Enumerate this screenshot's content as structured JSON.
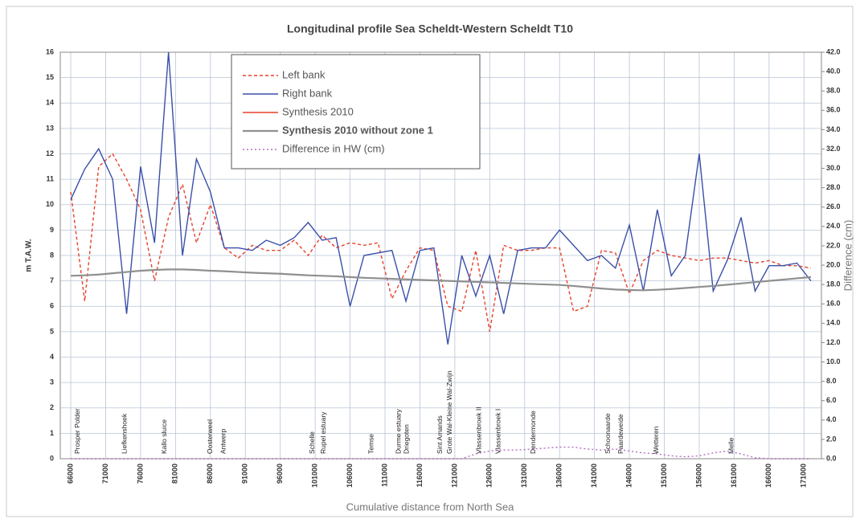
{
  "chart_data": {
    "type": "line",
    "title": "Longitudinal profile Sea Scheldt-Western Scheldt T10",
    "xlabel": "Cumulative distance from North Sea",
    "ylabel": "m T.A.W.",
    "y2label": "Difference (cm)",
    "xlim": [
      64500,
      173500
    ],
    "ylim": [
      0,
      16
    ],
    "y2lim": [
      0,
      42
    ],
    "xticks": [
      66000,
      71000,
      76000,
      81000,
      86000,
      91000,
      96000,
      101000,
      106000,
      111000,
      116000,
      121000,
      126000,
      131000,
      136000,
      141000,
      146000,
      151000,
      156000,
      161000,
      166000,
      171000
    ],
    "yticks": [
      0,
      1,
      2,
      3,
      4,
      5,
      6,
      7,
      8,
      9,
      10,
      11,
      12,
      13,
      14,
      15,
      16
    ],
    "y2ticks": [
      {
        "value": 0,
        "label": "0.0"
      },
      {
        "value": 2,
        "label": "2.0"
      },
      {
        "value": 4,
        "label": "4.0"
      },
      {
        "value": 6,
        "label": "6.0"
      },
      {
        "value": 8,
        "label": "8.0"
      },
      {
        "value": 10,
        "label": "10.0"
      },
      {
        "value": 12,
        "label": "12.0"
      },
      {
        "value": 14,
        "label": "14.0"
      },
      {
        "value": 16,
        "label": "16.0"
      },
      {
        "value": 18,
        "label": "18.0"
      },
      {
        "value": 20,
        "label": "20.0"
      },
      {
        "value": 22,
        "label": "22.0"
      },
      {
        "value": 24,
        "label": "24.0"
      },
      {
        "value": 26,
        "label": "26.0"
      },
      {
        "value": 28,
        "label": "28.0"
      },
      {
        "value": 30,
        "label": "30.0"
      },
      {
        "value": 32,
        "label": "32.0"
      },
      {
        "value": 34,
        "label": "34.0"
      },
      {
        "value": 36,
        "label": "36.0"
      },
      {
        "value": 38,
        "label": "38.0"
      },
      {
        "value": 40,
        "label": "40.0"
      },
      {
        "value": 42,
        "label": "42.0"
      }
    ],
    "grid": true,
    "legend": "upper-left",
    "x": [
      66000,
      68000,
      70000,
      72000,
      74000,
      76000,
      78000,
      80000,
      82000,
      84000,
      86000,
      88000,
      90000,
      92000,
      94000,
      96000,
      98000,
      100000,
      102000,
      104000,
      106000,
      108000,
      110000,
      112000,
      114000,
      116000,
      118000,
      120000,
      122000,
      124000,
      126000,
      128000,
      130000,
      132000,
      134000,
      136000,
      138000,
      140000,
      142000,
      144000,
      146000,
      148000,
      150000,
      152000,
      154000,
      156000,
      158000,
      160000,
      162000,
      164000,
      166000,
      168000,
      170000,
      172000
    ],
    "series": [
      {
        "name": "Left bank",
        "color": "#e8412a",
        "dash": "4,3",
        "values": [
          10.5,
          6.2,
          11.5,
          12.0,
          11.0,
          9.8,
          7.0,
          9.5,
          10.8,
          8.5,
          10.0,
          8.3,
          7.9,
          8.4,
          8.2,
          8.2,
          8.6,
          8.0,
          8.8,
          8.3,
          8.5,
          8.4,
          8.5,
          6.3,
          7.4,
          8.3,
          8.2,
          6.0,
          5.8,
          8.2,
          5.0,
          8.4,
          8.2,
          8.2,
          8.3,
          8.3,
          5.8,
          6.0,
          8.2,
          8.1,
          6.5,
          7.8,
          8.2,
          8.0,
          7.9,
          7.8,
          7.9,
          7.9,
          7.8,
          7.7,
          7.8,
          7.6,
          7.6,
          7.5
        ]
      },
      {
        "name": "Right bank",
        "color": "#3a4fa8",
        "values": [
          10.2,
          11.4,
          12.2,
          11.0,
          5.7,
          11.5,
          8.5,
          16.0,
          8.0,
          11.8,
          10.5,
          8.3,
          8.3,
          8.2,
          8.6,
          8.4,
          8.7,
          9.3,
          8.6,
          8.7,
          6.0,
          8.0,
          8.1,
          8.2,
          6.2,
          8.2,
          8.3,
          4.5,
          8.0,
          6.4,
          8.0,
          5.7,
          8.2,
          8.3,
          8.3,
          9.0,
          8.4,
          7.8,
          8.0,
          7.5,
          9.2,
          6.6,
          9.8,
          7.2,
          8.0,
          12.0,
          6.6,
          7.8,
          9.5,
          6.6,
          7.6,
          7.6,
          7.7,
          7.0
        ]
      },
      {
        "name": "Synthesis 2010",
        "color": "#e8412a",
        "values": [
          7.2,
          7.22,
          7.25,
          7.3,
          7.35,
          7.4,
          7.43,
          7.45,
          7.45,
          7.43,
          7.4,
          7.38,
          7.35,
          7.32,
          7.3,
          7.28,
          7.25,
          7.22,
          7.2,
          7.18,
          7.15,
          7.12,
          7.1,
          7.08,
          7.06,
          7.04,
          7.02,
          7.0,
          6.98,
          6.96,
          6.94,
          6.92,
          6.9,
          6.88,
          6.86,
          6.84,
          6.8,
          6.75,
          6.7,
          6.66,
          6.64,
          6.63,
          6.65,
          6.68,
          6.72,
          6.76,
          6.8,
          6.85,
          6.9,
          6.95,
          7.0,
          7.05,
          7.1,
          7.15
        ]
      },
      {
        "name": "Synthesis 2010 without zone 1",
        "color": "#8f8f8f",
        "bold": true,
        "values": [
          7.2,
          7.22,
          7.25,
          7.3,
          7.35,
          7.4,
          7.43,
          7.45,
          7.45,
          7.43,
          7.4,
          7.38,
          7.35,
          7.32,
          7.3,
          7.28,
          7.25,
          7.22,
          7.2,
          7.18,
          7.15,
          7.12,
          7.1,
          7.08,
          7.06,
          7.04,
          7.02,
          7.0,
          6.98,
          6.96,
          6.94,
          6.92,
          6.9,
          6.88,
          6.86,
          6.84,
          6.8,
          6.75,
          6.7,
          6.66,
          6.64,
          6.63,
          6.65,
          6.68,
          6.72,
          6.76,
          6.8,
          6.85,
          6.9,
          6.95,
          7.0,
          7.05,
          7.1,
          7.15
        ]
      },
      {
        "name": "Difference in HW (cm)",
        "color": "#b36fc4",
        "dash": "2,3",
        "axis": "y2",
        "values": [
          0,
          0,
          0,
          0,
          0,
          0,
          0,
          0,
          0,
          0,
          0,
          0,
          0,
          0,
          0,
          0,
          0,
          0,
          0,
          0,
          0,
          0,
          0,
          0,
          0,
          0,
          0,
          0,
          0,
          0.5,
          0.8,
          0.9,
          0.9,
          1.0,
          1.1,
          1.2,
          1.2,
          1.0,
          0.9,
          1.0,
          0.8,
          0.6,
          0.5,
          0.3,
          0.2,
          0.3,
          0.6,
          0.8,
          0.5,
          0.1,
          0,
          0,
          0,
          0
        ]
      }
    ],
    "annotations": [
      {
        "x": 67030,
        "text": "Prosper Polder"
      },
      {
        "x": 73710,
        "text": "Liefkenshoek"
      },
      {
        "x": 79460,
        "text": "Kallo sluice"
      },
      {
        "x": 86020,
        "text": "Oosterweel"
      },
      {
        "x": 87870,
        "text": "Antwerp"
      },
      {
        "x": 100640,
        "text": "Schelle"
      },
      {
        "x": 102250,
        "text": "Rupel estuary"
      },
      {
        "x": 109050,
        "text": "Temse"
      },
      {
        "x": 112960,
        "text": "Durme estuary"
      },
      {
        "x": 114110,
        "text": "Driegoten"
      },
      {
        "x": 118940,
        "text": "Sint Amands"
      },
      {
        "x": 120320,
        "text": "Grote Wal-Kleine Wal-Zwijn"
      },
      {
        "x": 124470,
        "text": "Vlassenbroek II"
      },
      {
        "x": 127230,
        "text": "Vlassenbroek I"
      },
      {
        "x": 132290,
        "text": "Dendermonde"
      },
      {
        "x": 142990,
        "text": "Schoonaarde"
      },
      {
        "x": 144830,
        "text": "Paardeweide"
      },
      {
        "x": 149900,
        "text": "Wetteren"
      },
      {
        "x": 160610,
        "text": "Melle"
      }
    ]
  }
}
